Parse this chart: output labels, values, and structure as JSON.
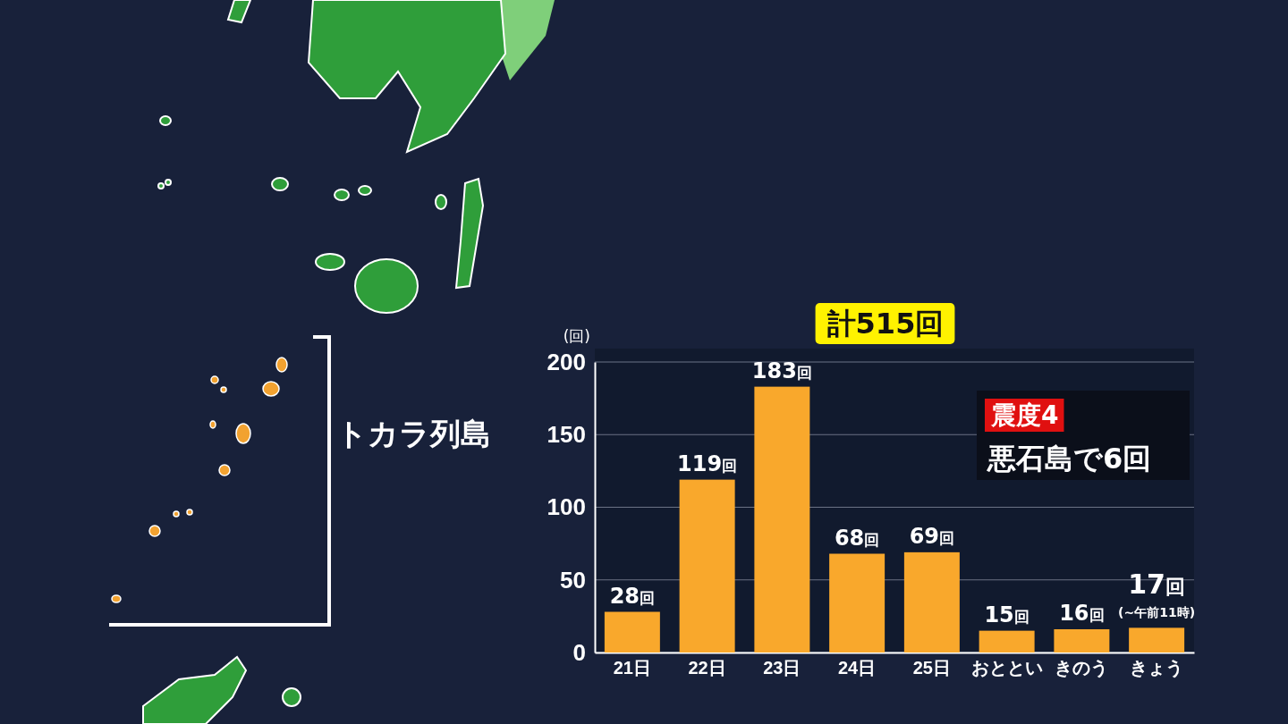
{
  "chart_data": {
    "type": "bar",
    "title": "計515回",
    "ylabel": "(回)",
    "categories": [
      "21日",
      "22日",
      "23日",
      "24日",
      "25日",
      "おととい",
      "きのう",
      "きょう"
    ],
    "values": [
      28,
      119,
      183,
      68,
      69,
      15,
      16,
      17
    ],
    "value_labels": [
      "28回",
      "119回",
      "183回",
      "68回",
      "69回",
      "15回",
      "16回",
      "17回"
    ],
    "color": "#f9a82c",
    "ylim": [
      0,
      200
    ],
    "yticks": [
      0,
      50,
      100,
      150,
      200
    ],
    "grid": "y",
    "annotations": [
      "震度4",
      "悪石島で6回",
      "トカラ列島",
      {
        "text": "(~午前11時)",
        "x": "きょう",
        "y": 17
      }
    ]
  }
}
